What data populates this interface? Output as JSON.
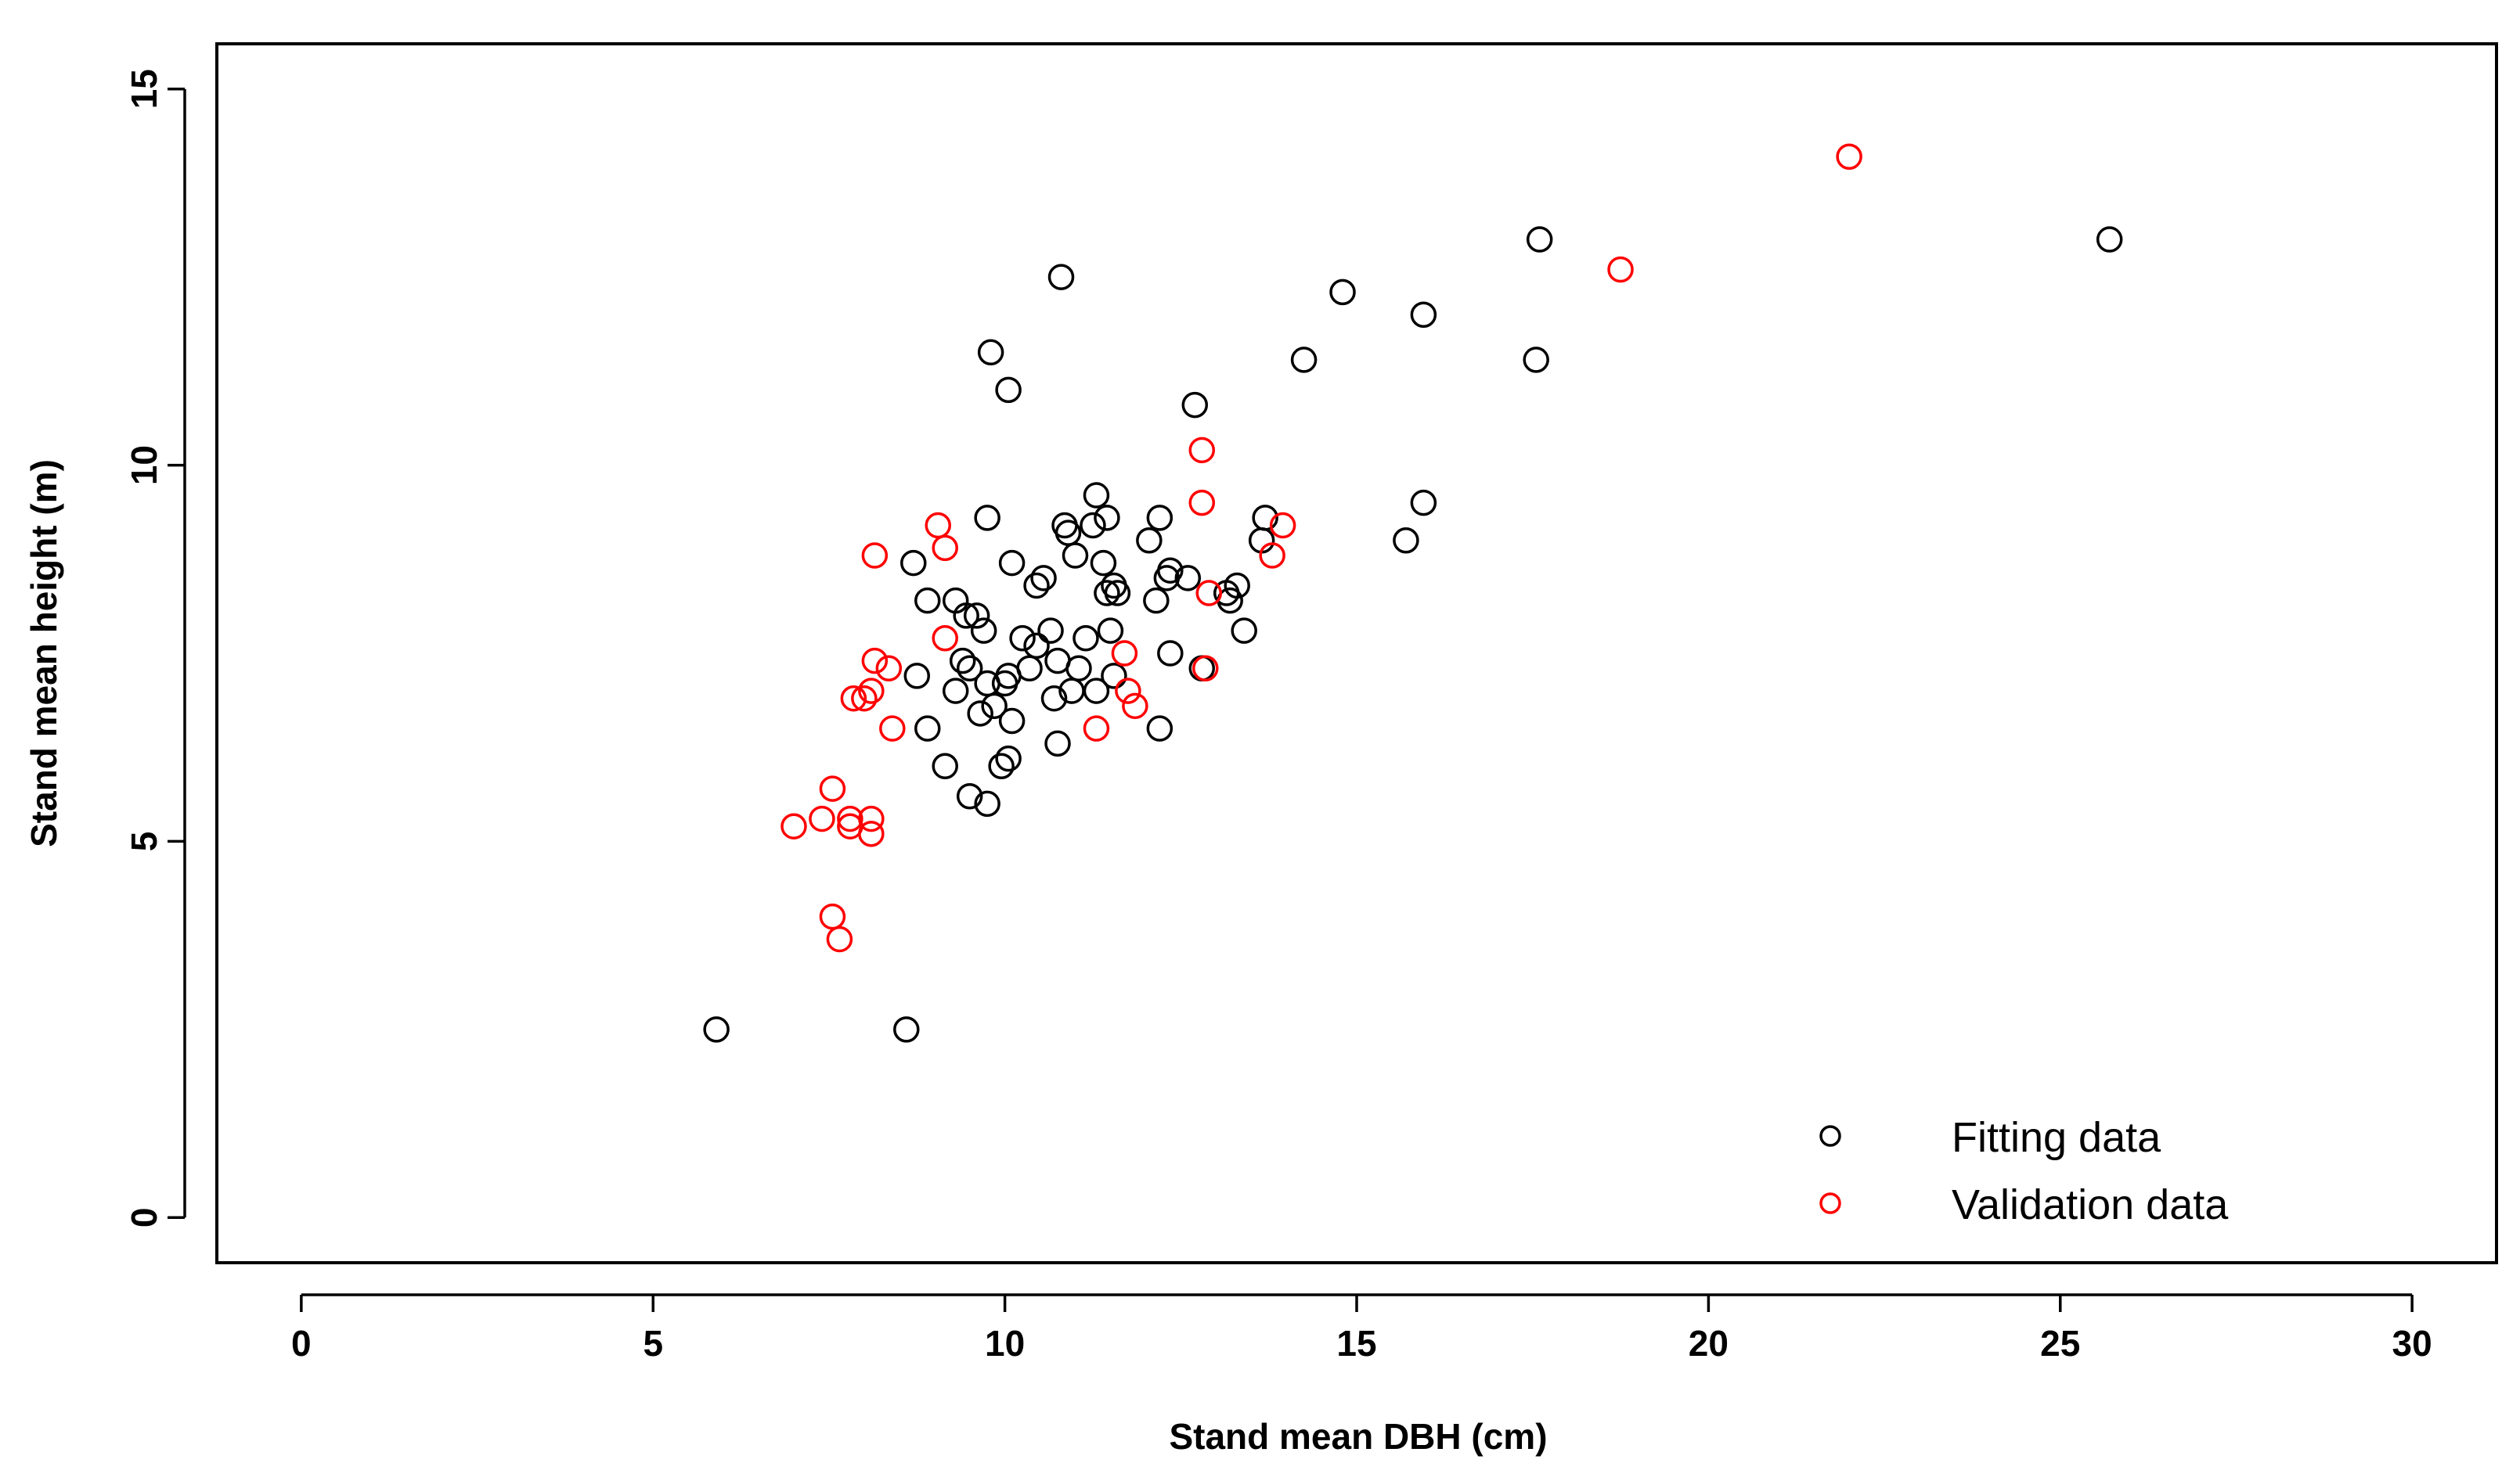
{
  "chart_data": {
    "type": "scatter",
    "title": "",
    "xlabel": "Stand mean DBH (cm)",
    "ylabel": "Stand mean height (m)",
    "xlim": [
      -1.2,
      31.2
    ],
    "ylim": [
      -0.6,
      15.6
    ],
    "x_ticks": [
      0,
      5,
      10,
      15,
      20,
      25,
      30
    ],
    "y_ticks": [
      0,
      5,
      10,
      15
    ],
    "grid": false,
    "legend_position": "bottom-right",
    "series": [
      {
        "name": "Fitting data",
        "color": "#000000",
        "marker": "open-circle",
        "points": [
          [
            5.9,
            2.5
          ],
          [
            8.6,
            2.5
          ],
          [
            8.7,
            8.7
          ],
          [
            8.9,
            8.2
          ],
          [
            8.75,
            7.2
          ],
          [
            8.9,
            6.5
          ],
          [
            9.15,
            6.0
          ],
          [
            9.3,
            8.2
          ],
          [
            9.4,
            7.4
          ],
          [
            9.45,
            8.0
          ],
          [
            9.5,
            7.3
          ],
          [
            9.3,
            7.0
          ],
          [
            9.6,
            8.0
          ],
          [
            9.65,
            6.7
          ],
          [
            9.7,
            7.8
          ],
          [
            9.75,
            7.1
          ],
          [
            9.85,
            6.8
          ],
          [
            9.5,
            5.6
          ],
          [
            9.75,
            5.5
          ],
          [
            9.95,
            6.0
          ],
          [
            10.05,
            6.1
          ],
          [
            10.0,
            7.1
          ],
          [
            10.05,
            7.2
          ],
          [
            10.1,
            6.6
          ],
          [
            10.1,
            8.7
          ],
          [
            9.75,
            9.3
          ],
          [
            9.8,
            11.5
          ],
          [
            10.05,
            11.0
          ],
          [
            10.25,
            7.7
          ],
          [
            10.35,
            7.3
          ],
          [
            10.45,
            7.6
          ],
          [
            10.45,
            8.4
          ],
          [
            10.55,
            8.5
          ],
          [
            10.65,
            7.8
          ],
          [
            10.7,
            6.9
          ],
          [
            10.75,
            7.4
          ],
          [
            10.75,
            6.3
          ],
          [
            10.8,
            12.5
          ],
          [
            10.85,
            9.2
          ],
          [
            10.9,
            9.1
          ],
          [
            10.95,
            7.0
          ],
          [
            11.0,
            8.8
          ],
          [
            11.05,
            7.3
          ],
          [
            11.15,
            7.7
          ],
          [
            11.25,
            9.2
          ],
          [
            11.3,
            9.6
          ],
          [
            11.3,
            7.0
          ],
          [
            11.4,
            8.7
          ],
          [
            11.45,
            9.3
          ],
          [
            11.45,
            8.3
          ],
          [
            11.5,
            7.8
          ],
          [
            11.55,
            7.2
          ],
          [
            11.55,
            8.4
          ],
          [
            11.6,
            8.3
          ],
          [
            12.05,
            9.0
          ],
          [
            12.15,
            8.2
          ],
          [
            12.2,
            9.3
          ],
          [
            12.2,
            6.5
          ],
          [
            12.3,
            8.5
          ],
          [
            12.35,
            8.6
          ],
          [
            12.35,
            7.5
          ],
          [
            12.6,
            8.5
          ],
          [
            12.7,
            10.8
          ],
          [
            12.8,
            7.3
          ],
          [
            13.15,
            8.3
          ],
          [
            13.2,
            8.2
          ],
          [
            13.3,
            8.4
          ],
          [
            13.4,
            7.8
          ],
          [
            13.65,
            9.0
          ],
          [
            13.7,
            9.3
          ],
          [
            14.25,
            11.4
          ],
          [
            14.8,
            12.3
          ],
          [
            15.7,
            9.0
          ],
          [
            15.95,
            9.5
          ],
          [
            15.95,
            12.0
          ],
          [
            17.55,
            11.4
          ],
          [
            17.6,
            13.0
          ],
          [
            25.7,
            13.0
          ]
        ]
      },
      {
        "name": "Validation data",
        "color": "#ff0000",
        "marker": "open-circle",
        "points": [
          [
            7.0,
            5.2
          ],
          [
            7.4,
            5.3
          ],
          [
            7.55,
            5.7
          ],
          [
            7.55,
            4.0
          ],
          [
            7.65,
            3.7
          ],
          [
            7.8,
            5.3
          ],
          [
            7.8,
            5.2
          ],
          [
            7.85,
            6.9
          ],
          [
            8.0,
            6.9
          ],
          [
            8.1,
            7.0
          ],
          [
            8.1,
            5.3
          ],
          [
            8.1,
            5.1
          ],
          [
            8.15,
            7.4
          ],
          [
            8.15,
            8.8
          ],
          [
            8.35,
            7.3
          ],
          [
            8.4,
            6.5
          ],
          [
            9.05,
            9.2
          ],
          [
            9.15,
            8.9
          ],
          [
            9.15,
            7.7
          ],
          [
            11.3,
            6.5
          ],
          [
            11.7,
            7.5
          ],
          [
            11.75,
            7.0
          ],
          [
            11.85,
            6.8
          ],
          [
            12.8,
            10.2
          ],
          [
            12.8,
            9.5
          ],
          [
            12.85,
            7.3
          ],
          [
            12.9,
            8.3
          ],
          [
            13.8,
            8.8
          ],
          [
            13.95,
            9.2
          ],
          [
            18.75,
            12.6
          ],
          [
            22.0,
            14.1
          ]
        ]
      }
    ]
  }
}
